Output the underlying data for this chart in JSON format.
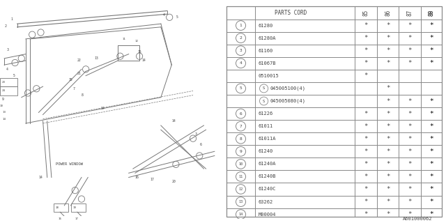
{
  "catalog_code": "A601000062",
  "rows": [
    {
      "num": "1",
      "code": "61280",
      "marks": [
        1,
        1,
        1,
        1,
        1
      ],
      "sub_circle": false
    },
    {
      "num": "2",
      "code": "61280A",
      "marks": [
        1,
        1,
        1,
        1,
        1
      ],
      "sub_circle": false
    },
    {
      "num": "3",
      "code": "61160",
      "marks": [
        1,
        1,
        1,
        1,
        1
      ],
      "sub_circle": false
    },
    {
      "num": "4",
      "code": "61067B",
      "marks": [
        1,
        1,
        1,
        1,
        1
      ],
      "sub_circle": false
    },
    {
      "num": "",
      "code": "0510015",
      "marks": [
        1,
        0,
        0,
        0,
        0
      ],
      "sub_circle": false
    },
    {
      "num": "5",
      "code": "045005100(4)",
      "marks": [
        0,
        1,
        0,
        0,
        0
      ],
      "sub_circle": true
    },
    {
      "num": "",
      "code": "045005080(4)",
      "marks": [
        0,
        1,
        1,
        1,
        1
      ],
      "sub_circle": true
    },
    {
      "num": "6",
      "code": "61226",
      "marks": [
        1,
        1,
        1,
        1,
        1
      ],
      "sub_circle": false
    },
    {
      "num": "7",
      "code": "61011",
      "marks": [
        1,
        1,
        1,
        1,
        1
      ],
      "sub_circle": false
    },
    {
      "num": "8",
      "code": "61011A",
      "marks": [
        1,
        1,
        1,
        1,
        1
      ],
      "sub_circle": false
    },
    {
      "num": "9",
      "code": "61240",
      "marks": [
        1,
        1,
        1,
        1,
        1
      ],
      "sub_circle": false
    },
    {
      "num": "10",
      "code": "61240A",
      "marks": [
        1,
        1,
        1,
        1,
        1
      ],
      "sub_circle": false
    },
    {
      "num": "11",
      "code": "61240B",
      "marks": [
        1,
        1,
        1,
        1,
        1
      ],
      "sub_circle": false
    },
    {
      "num": "12",
      "code": "61240C",
      "marks": [
        1,
        1,
        1,
        1,
        1
      ],
      "sub_circle": false
    },
    {
      "num": "13",
      "code": "63262",
      "marks": [
        1,
        1,
        1,
        1,
        1
      ],
      "sub_circle": false
    },
    {
      "num": "14",
      "code": "M00004",
      "marks": [
        1,
        1,
        1,
        1,
        1
      ],
      "sub_circle": false
    }
  ],
  "bg_color": "#ffffff",
  "line_color": "#777777",
  "text_color": "#444444"
}
